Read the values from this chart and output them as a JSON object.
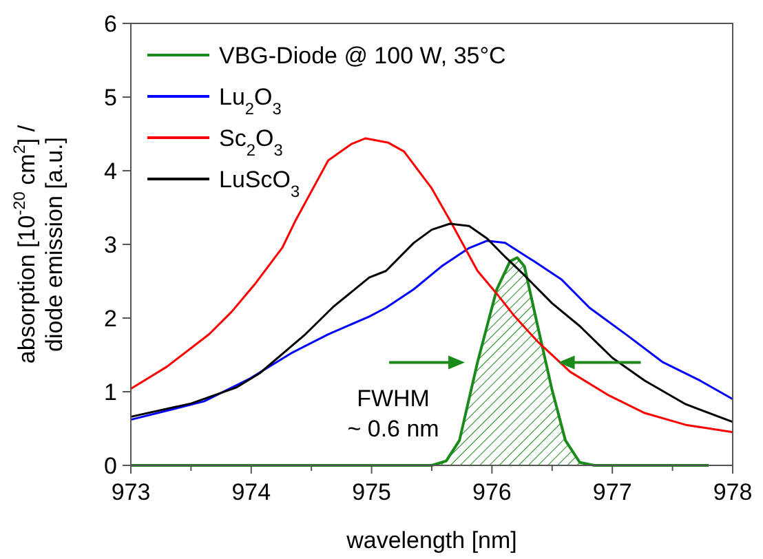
{
  "chart_data": {
    "type": "line",
    "xlabel": "wavelength [nm]",
    "ylabel": "absorption  [10$^{-20}$ cm$^{2}$] /\ndiode emission [a.u.]",
    "xlim": [
      973,
      978
    ],
    "ylim": [
      0,
      6
    ],
    "xticks": [
      973,
      {
        "value": 973.5,
        "label": null
      },
      974,
      {
        "value": 974.5,
        "label": null
      },
      975,
      {
        "value": 975.5,
        "label": null
      },
      976,
      {
        "value": 976.5,
        "label": null
      },
      977,
      {
        "value": 977.5,
        "label": null
      },
      978
    ],
    "yticks": [
      0,
      1,
      2,
      3,
      4,
      5,
      6
    ],
    "grid": false,
    "legend": "top left",
    "line_style": "solid",
    "marker": "none",
    "annotations": [
      "FWHM\n~ 0.6 nm"
    ],
    "series": [
      {
        "name": "VBG-Diode @ 100 W, 35°C",
        "type": "area",
        "color": "#1a8a1a",
        "x": [
          973,
          975.5,
          975.62,
          975.73,
          975.88,
          976.04,
          976.15,
          976.21,
          976.27,
          976.38,
          976.5,
          976.61,
          976.73,
          976.85,
          977.8
        ],
        "values": [
          0,
          0,
          0.06,
          0.34,
          1.4,
          2.39,
          2.77,
          2.82,
          2.7,
          1.89,
          1.02,
          0.34,
          0.04,
          0,
          0
        ]
      },
      {
        "name": "Lu$_{2}$O$_{3}$",
        "color": "#0000ff",
        "x": [
          973,
          973.61,
          973.99,
          974.34,
          974.64,
          974.98,
          975.12,
          975.35,
          975.58,
          975.81,
          975.96,
          976.11,
          976.35,
          976.58,
          976.81,
          977.12,
          977.42,
          977.73,
          978
        ],
        "values": [
          0.62,
          0.87,
          1.18,
          1.53,
          1.78,
          2.02,
          2.14,
          2.39,
          2.7,
          2.95,
          3.05,
          3.02,
          2.77,
          2.52,
          2.14,
          1.77,
          1.4,
          1.15,
          0.9
        ]
      },
      {
        "name": "Sc$_{2}$O$_{3}$",
        "color": "#ff0000",
        "x": [
          973,
          973.3,
          973.65,
          973.84,
          974.03,
          974.26,
          974.37,
          974.64,
          974.83,
          974.95,
          975.14,
          975.27,
          975.5,
          975.65,
          975.88,
          976.04,
          976.19,
          976.38,
          976.65,
          976.96,
          977.27,
          977.61,
          978
        ],
        "values": [
          1.04,
          1.34,
          1.78,
          2.09,
          2.46,
          2.96,
          3.33,
          4.14,
          4.36,
          4.44,
          4.38,
          4.26,
          3.76,
          3.33,
          2.64,
          2.33,
          2.02,
          1.68,
          1.27,
          0.96,
          0.71,
          0.55,
          0.45
        ]
      },
      {
        "name": "LuScO$_{3}$",
        "color": "#000000",
        "x": [
          973,
          973.5,
          973.88,
          974.07,
          974.45,
          974.68,
          974.98,
          975.12,
          975.35,
          975.5,
          975.65,
          975.81,
          975.96,
          976.11,
          976.27,
          976.5,
          976.73,
          977,
          977.27,
          977.61,
          978
        ],
        "values": [
          0.66,
          0.84,
          1.06,
          1.25,
          1.78,
          2.15,
          2.55,
          2.64,
          3.02,
          3.2,
          3.28,
          3.25,
          3.08,
          2.83,
          2.58,
          2.2,
          1.89,
          1.46,
          1.15,
          0.83,
          0.59
        ]
      }
    ]
  }
}
